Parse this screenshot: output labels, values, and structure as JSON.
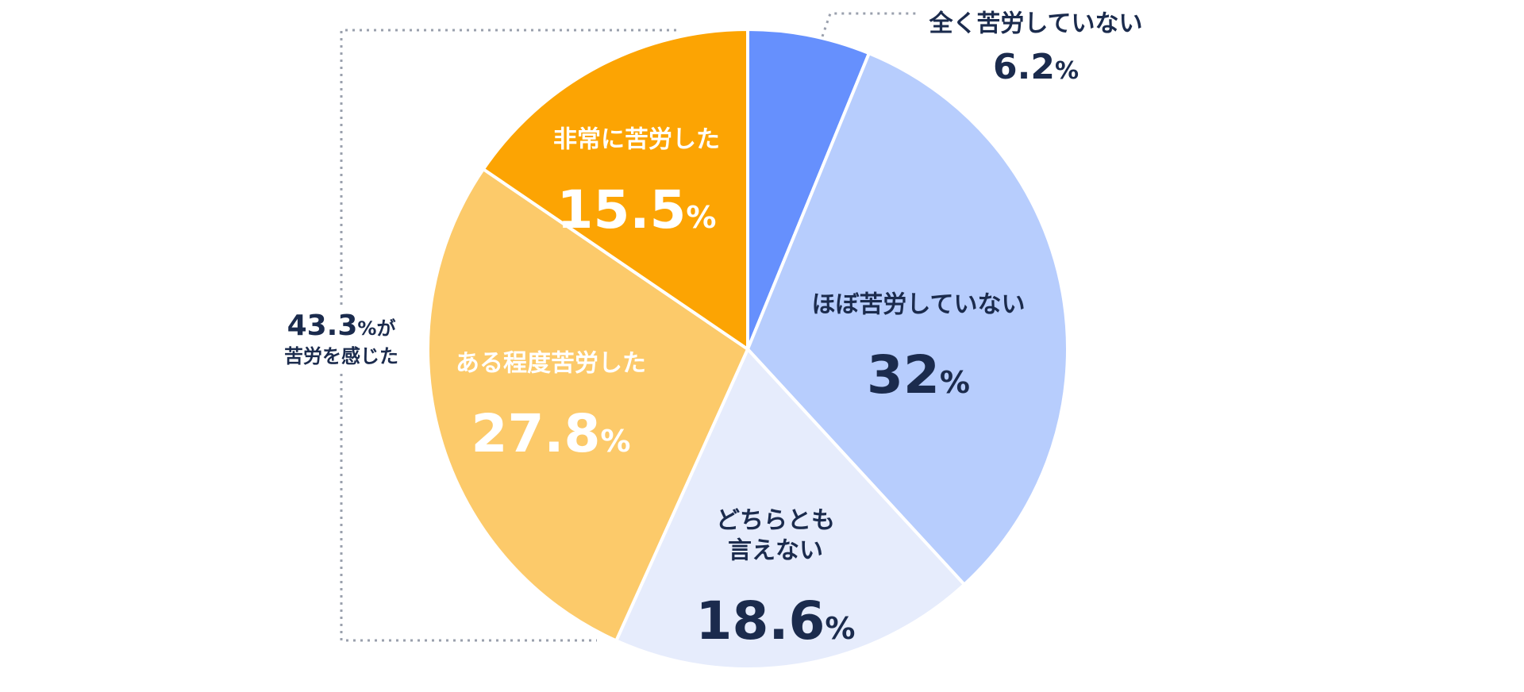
{
  "chart_data": {
    "type": "pie",
    "unit": "%",
    "colors": {
      "dark_text": "#1b2b4d",
      "light_text": "#ffffff",
      "guide": "#9aa0ad",
      "divider": "#ffffff"
    },
    "slices": [
      {
        "label": "全く苦労していない",
        "value": 6.2,
        "display": "6.2",
        "color": "#6690fd",
        "text": "dark",
        "label_outside": true
      },
      {
        "label": "ほぼ苦労していない",
        "value": 32,
        "display": "32",
        "color": "#b7cdfd",
        "text": "dark"
      },
      {
        "label": "どちらとも\n言えない",
        "value": 18.6,
        "display": "18.6",
        "color": "#e6ecfc",
        "text": "dark"
      },
      {
        "label": "ある程度苦労した",
        "value": 27.8,
        "display": "27.8",
        "color": "#fcca6a",
        "text": "light"
      },
      {
        "label": "非常に苦労した",
        "value": 15.5,
        "display": "15.5",
        "color": "#fca403",
        "text": "light"
      }
    ],
    "annotation": {
      "value": "43.3",
      "unit": "%",
      "suffix": "が",
      "line2": "苦労を感じた"
    }
  }
}
